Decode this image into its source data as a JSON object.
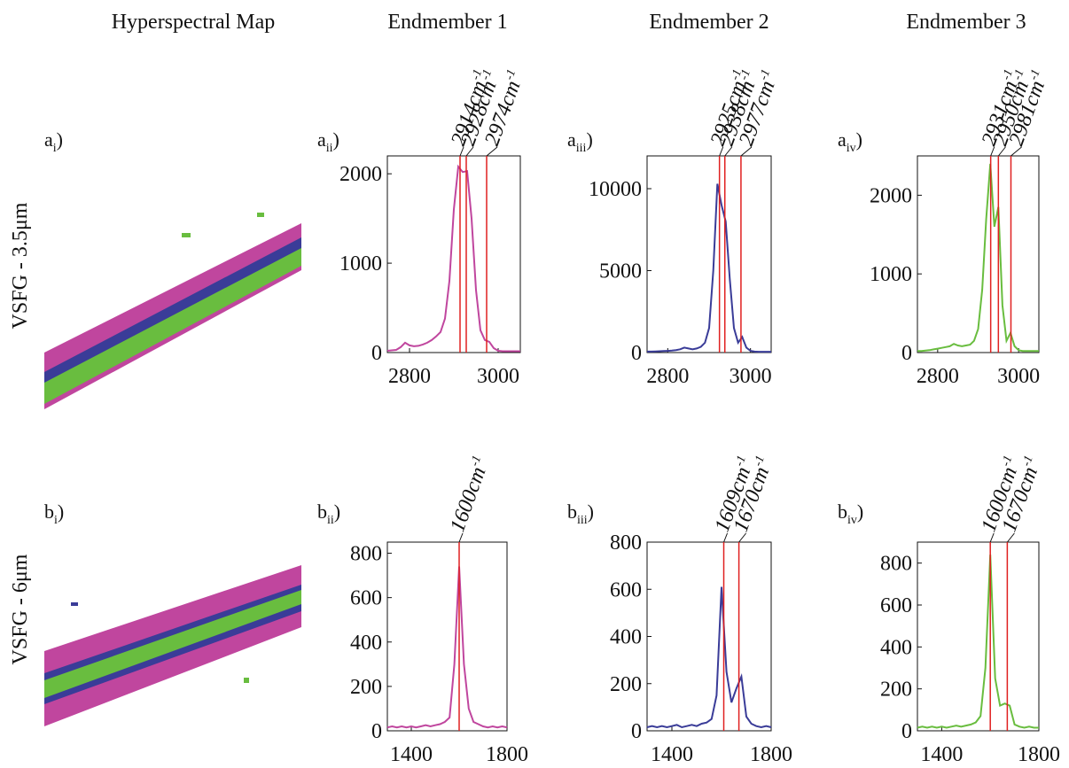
{
  "column_titles": [
    "Hyperspectral Map",
    "Endmember 1",
    "Endmember 2",
    "Endmember 3"
  ],
  "row_labels": [
    "VSFG - 3.5μm",
    "VSFG - 6μm"
  ],
  "panel_labels": [
    {
      "letter": "a",
      "sub": "i",
      "close": ")"
    },
    {
      "letter": "a",
      "sub": "ii",
      "close": ")"
    },
    {
      "letter": "a",
      "sub": "iii",
      "close": ")"
    },
    {
      "letter": "a",
      "sub": "iv",
      "close": ")"
    },
    {
      "letter": "b",
      "sub": "i",
      "close": ")"
    },
    {
      "letter": "b",
      "sub": "ii",
      "close": ")"
    },
    {
      "letter": "b",
      "sub": "iii",
      "close": ")"
    },
    {
      "letter": "b",
      "sub": "iv",
      "close": ")"
    }
  ],
  "chart_data": [
    {
      "type": "line",
      "color": "#c0469e",
      "x": [
        2750,
        2760,
        2770,
        2780,
        2790,
        2800,
        2810,
        2820,
        2830,
        2840,
        2850,
        2860,
        2870,
        2880,
        2890,
        2900,
        2910,
        2920,
        2930,
        2940,
        2950,
        2960,
        2970,
        2980,
        2990,
        3000,
        3010,
        3020,
        3030,
        3040,
        3050
      ],
      "values": [
        20,
        25,
        30,
        60,
        110,
        80,
        70,
        75,
        90,
        110,
        140,
        180,
        230,
        380,
        800,
        1600,
        2080,
        2020,
        2030,
        1500,
        700,
        250,
        140,
        120,
        50,
        20,
        15,
        15,
        15,
        15,
        15
      ],
      "xlim": [
        2750,
        3050
      ],
      "xticks": [
        2800,
        3000
      ],
      "ylim": [
        0,
        2200
      ],
      "yticks": [
        0,
        1000,
        2000
      ],
      "markers": [
        {
          "x": 2914,
          "label": "2914cm",
          "sup": "-1"
        },
        {
          "x": 2928,
          "label": "2928cm",
          "sup": "-1"
        },
        {
          "x": 2974,
          "label": "2974cm",
          "sup": "-1"
        }
      ]
    },
    {
      "type": "line",
      "color": "#3a3c98",
      "x": [
        2750,
        2760,
        2770,
        2780,
        2790,
        2800,
        2810,
        2820,
        2830,
        2840,
        2850,
        2860,
        2870,
        2880,
        2890,
        2900,
        2910,
        2920,
        2930,
        2940,
        2950,
        2960,
        2970,
        2980,
        2990,
        3000,
        3010,
        3020,
        3030,
        3040,
        3050
      ],
      "values": [
        60,
        60,
        70,
        80,
        90,
        100,
        120,
        150,
        200,
        300,
        250,
        200,
        250,
        350,
        600,
        1500,
        5000,
        10300,
        9000,
        8000,
        4500,
        1500,
        600,
        950,
        300,
        100,
        60,
        50,
        50,
        50,
        50
      ],
      "xlim": [
        2750,
        3050
      ],
      "xticks": [
        2800,
        3000
      ],
      "ylim": [
        0,
        12000
      ],
      "yticks": [
        0,
        5000,
        10000
      ],
      "markers": [
        {
          "x": 2925,
          "label": "2925cm",
          "sup": "-1"
        },
        {
          "x": 2938,
          "label": "2938cm",
          "sup": "-1"
        },
        {
          "x": 2977,
          "label": "2977cm",
          "sup": "-1"
        }
      ]
    },
    {
      "type": "line",
      "color": "#69bd3f",
      "x": [
        2750,
        2760,
        2770,
        2780,
        2790,
        2800,
        2810,
        2820,
        2830,
        2840,
        2850,
        2860,
        2870,
        2880,
        2890,
        2900,
        2910,
        2920,
        2930,
        2940,
        2950,
        2960,
        2970,
        2980,
        2990,
        3000,
        3010,
        3020,
        3030,
        3040,
        3050
      ],
      "values": [
        20,
        20,
        25,
        30,
        40,
        50,
        60,
        70,
        80,
        110,
        90,
        80,
        90,
        100,
        150,
        300,
        800,
        1700,
        2400,
        1600,
        1850,
        600,
        150,
        250,
        80,
        30,
        20,
        20,
        20,
        20,
        20
      ],
      "xlim": [
        2750,
        3050
      ],
      "xticks": [
        2800,
        3000
      ],
      "ylim": [
        0,
        2500
      ],
      "yticks": [
        0,
        1000,
        2000
      ],
      "markers": [
        {
          "x": 2931,
          "label": "2931cm",
          "sup": "-1"
        },
        {
          "x": 2950,
          "label": "2950cm",
          "sup": "-1"
        },
        {
          "x": 2981,
          "label": "2981cm",
          "sup": "-1"
        }
      ]
    },
    {
      "type": "line",
      "color": "#c0469e",
      "x": [
        1300,
        1320,
        1340,
        1360,
        1380,
        1400,
        1420,
        1440,
        1460,
        1480,
        1500,
        1520,
        1540,
        1560,
        1580,
        1600,
        1620,
        1640,
        1660,
        1680,
        1700,
        1720,
        1740,
        1760,
        1780,
        1800
      ],
      "values": [
        15,
        20,
        15,
        20,
        15,
        20,
        15,
        20,
        25,
        20,
        25,
        30,
        40,
        60,
        300,
        740,
        300,
        100,
        40,
        30,
        20,
        15,
        20,
        15,
        20,
        15
      ],
      "xlim": [
        1300,
        1800
      ],
      "xticks": [
        1400,
        1800
      ],
      "ylim": [
        0,
        850
      ],
      "yticks": [
        0,
        200,
        400,
        600,
        800
      ],
      "markers": [
        {
          "x": 1600,
          "label": "1600cm",
          "sup": "-1"
        }
      ]
    },
    {
      "type": "line",
      "color": "#3a3c98",
      "x": [
        1300,
        1320,
        1340,
        1360,
        1380,
        1400,
        1420,
        1440,
        1460,
        1480,
        1500,
        1520,
        1540,
        1560,
        1580,
        1600,
        1620,
        1640,
        1660,
        1680,
        1700,
        1720,
        1740,
        1760,
        1780,
        1800
      ],
      "values": [
        15,
        20,
        15,
        20,
        15,
        20,
        25,
        15,
        20,
        25,
        20,
        30,
        35,
        50,
        150,
        610,
        250,
        120,
        180,
        230,
        60,
        30,
        20,
        15,
        20,
        15
      ],
      "xlim": [
        1300,
        1800
      ],
      "xticks": [
        1400,
        1800
      ],
      "ylim": [
        0,
        800
      ],
      "yticks": [
        0,
        200,
        400,
        600,
        800
      ],
      "markers": [
        {
          "x": 1609,
          "label": "1609cm",
          "sup": "-1"
        },
        {
          "x": 1670,
          "label": "1670cm",
          "sup": "-1"
        }
      ]
    },
    {
      "type": "line",
      "color": "#69bd3f",
      "x": [
        1300,
        1320,
        1340,
        1360,
        1380,
        1400,
        1420,
        1440,
        1460,
        1480,
        1500,
        1520,
        1540,
        1560,
        1580,
        1600,
        1620,
        1640,
        1660,
        1680,
        1700,
        1720,
        1740,
        1760,
        1780,
        1800
      ],
      "values": [
        15,
        20,
        15,
        20,
        15,
        20,
        15,
        20,
        25,
        20,
        25,
        30,
        40,
        70,
        300,
        840,
        250,
        120,
        130,
        120,
        30,
        20,
        15,
        20,
        15,
        15
      ],
      "xlim": [
        1300,
        1800
      ],
      "xticks": [
        1400,
        1800
      ],
      "ylim": [
        0,
        900
      ],
      "yticks": [
        0,
        200,
        400,
        600,
        800
      ],
      "markers": [
        {
          "x": 1600,
          "label": "1600cm",
          "sup": "-1"
        },
        {
          "x": 1670,
          "label": "1670cm",
          "sup": "-1"
        }
      ]
    }
  ]
}
